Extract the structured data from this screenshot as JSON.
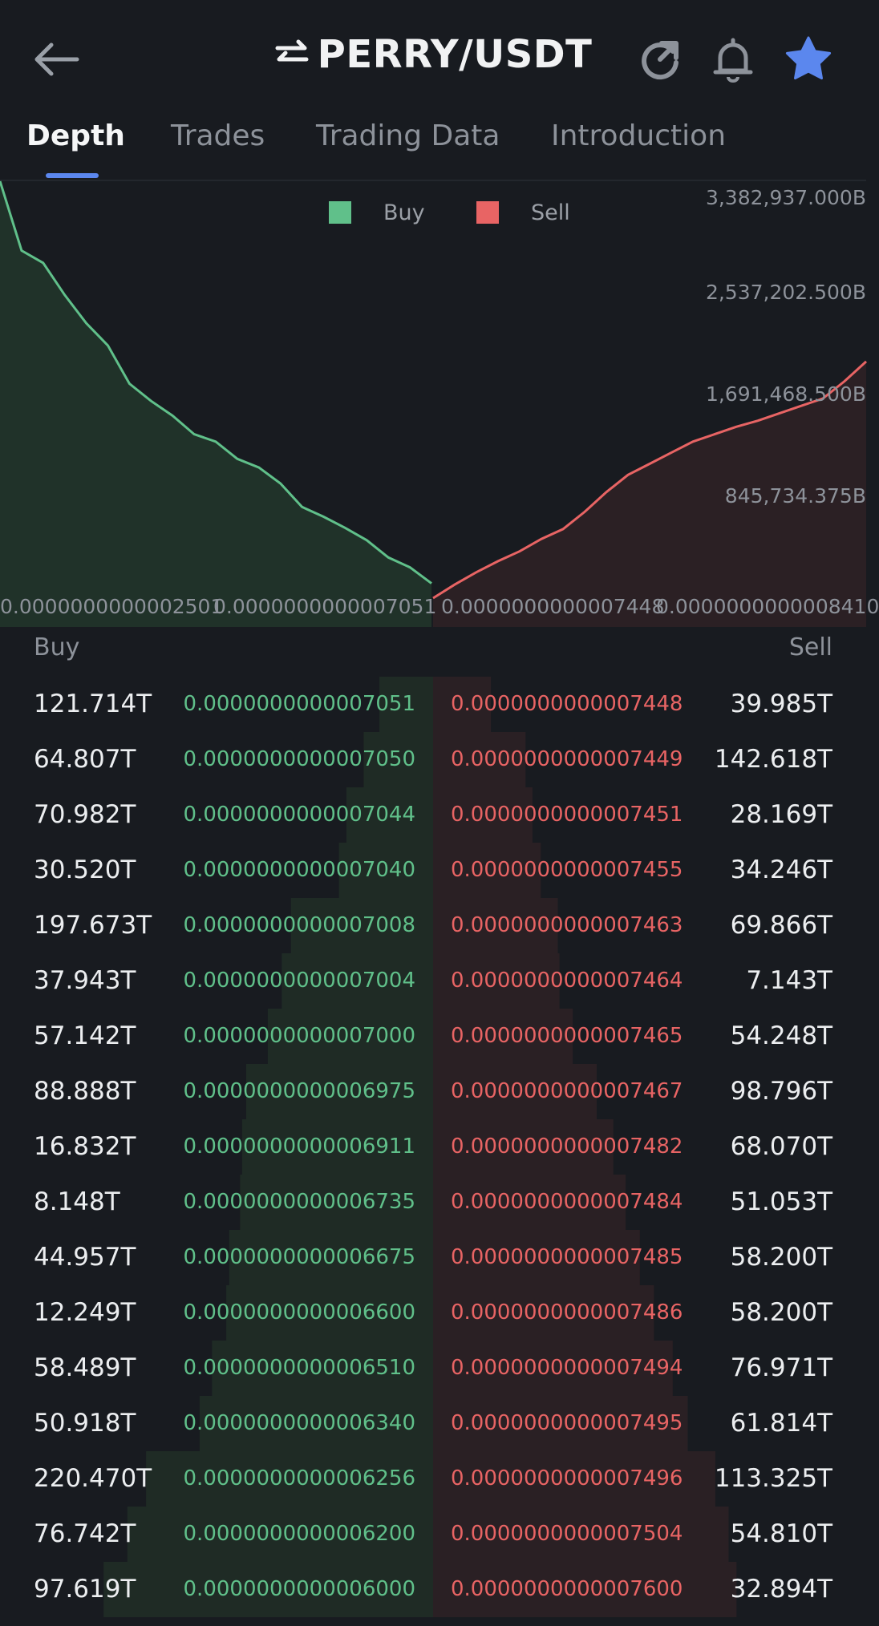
{
  "header": {
    "pair": "PERRY/USDT",
    "icons": {
      "back": "arrow-left-icon",
      "swap": "swap-icon",
      "refresh": "refresh-icon",
      "bell": "bell-icon",
      "star": "star-icon"
    },
    "star_color": "#5b87ee"
  },
  "tabs": [
    {
      "label": "Depth",
      "active": true
    },
    {
      "label": "Trades",
      "active": false
    },
    {
      "label": "Trading Data",
      "active": false
    },
    {
      "label": "Introduction",
      "active": false
    }
  ],
  "chart": {
    "legend_buy": "Buy",
    "legend_sell": "Sell",
    "buy_color": "#60c08a",
    "sell_color": "#e86464",
    "y_ticks": [
      "3,382,937.000B",
      "2,537,202.500B",
      "1,691,468.500B",
      "845,734.375B"
    ],
    "x_ticks": [
      "0.0000000000002501",
      "0.0000000000007051",
      "0.0000000000007448",
      "0.0000000000008410"
    ]
  },
  "chart_data": {
    "type": "area",
    "series": [
      {
        "name": "Buy",
        "x_range": [
          "0.0000000000002501",
          "0.0000000000007051"
        ],
        "y": [
          3382937,
          2820000,
          2720000,
          2460000,
          2230000,
          2050000,
          1740000,
          1600000,
          1480000,
          1330000,
          1270000,
          1130000,
          1060000,
          930000,
          740000,
          660000,
          570000,
          470000,
          330000,
          250000,
          120000
        ]
      },
      {
        "name": "Sell",
        "x_range": [
          "0.0000000000007448",
          "0.0000000000008410"
        ],
        "y": [
          0,
          110000,
          210000,
          300000,
          380000,
          480000,
          560000,
          700000,
          860000,
          1000000,
          1090000,
          1180000,
          1270000,
          1330000,
          1390000,
          1440000,
          1500000,
          1560000,
          1620000,
          1760000,
          1920000
        ]
      }
    ],
    "ylim": [
      0,
      3382937
    ],
    "y_unit": "B",
    "grid": false,
    "legend": "top-center"
  },
  "orderbook": {
    "buy_label": "Buy",
    "sell_label": "Sell",
    "rows": [
      {
        "buy_amount": "121.714T",
        "buy_price": "0.0000000000007051",
        "sell_price": "0.0000000000007448",
        "sell_amount": "39.985T"
      },
      {
        "buy_amount": "64.807T",
        "buy_price": "0.0000000000007050",
        "sell_price": "0.0000000000007449",
        "sell_amount": "142.618T"
      },
      {
        "buy_amount": "70.982T",
        "buy_price": "0.0000000000007044",
        "sell_price": "0.0000000000007451",
        "sell_amount": "28.169T"
      },
      {
        "buy_amount": "30.520T",
        "buy_price": "0.0000000000007040",
        "sell_price": "0.0000000000007455",
        "sell_amount": "34.246T"
      },
      {
        "buy_amount": "197.673T",
        "buy_price": "0.0000000000007008",
        "sell_price": "0.0000000000007463",
        "sell_amount": "69.866T"
      },
      {
        "buy_amount": "37.943T",
        "buy_price": "0.0000000000007004",
        "sell_price": "0.0000000000007464",
        "sell_amount": "7.143T"
      },
      {
        "buy_amount": "57.142T",
        "buy_price": "0.0000000000007000",
        "sell_price": "0.0000000000007465",
        "sell_amount": "54.248T"
      },
      {
        "buy_amount": "88.888T",
        "buy_price": "0.0000000000006975",
        "sell_price": "0.0000000000007467",
        "sell_amount": "98.796T"
      },
      {
        "buy_amount": "16.832T",
        "buy_price": "0.0000000000006911",
        "sell_price": "0.0000000000007482",
        "sell_amount": "68.070T"
      },
      {
        "buy_amount": "8.148T",
        "buy_price": "0.0000000000006735",
        "sell_price": "0.0000000000007484",
        "sell_amount": "51.053T"
      },
      {
        "buy_amount": "44.957T",
        "buy_price": "0.0000000000006675",
        "sell_price": "0.0000000000007485",
        "sell_amount": "58.200T"
      },
      {
        "buy_amount": "12.249T",
        "buy_price": "0.0000000000006600",
        "sell_price": "0.0000000000007486",
        "sell_amount": "58.200T"
      },
      {
        "buy_amount": "58.489T",
        "buy_price": "0.0000000000006510",
        "sell_price": "0.0000000000007494",
        "sell_amount": "76.971T"
      },
      {
        "buy_amount": "50.918T",
        "buy_price": "0.0000000000006340",
        "sell_price": "0.0000000000007495",
        "sell_amount": "61.814T"
      },
      {
        "buy_amount": "220.470T",
        "buy_price": "0.0000000000006256",
        "sell_price": "0.0000000000007496",
        "sell_amount": "113.325T"
      },
      {
        "buy_amount": "76.742T",
        "buy_price": "0.0000000000006200",
        "sell_price": "0.0000000000007504",
        "sell_amount": "54.810T"
      },
      {
        "buy_amount": "97.619T",
        "buy_price": "0.0000000000006000",
        "sell_price": "0.0000000000007600",
        "sell_amount": "32.894T"
      }
    ]
  }
}
